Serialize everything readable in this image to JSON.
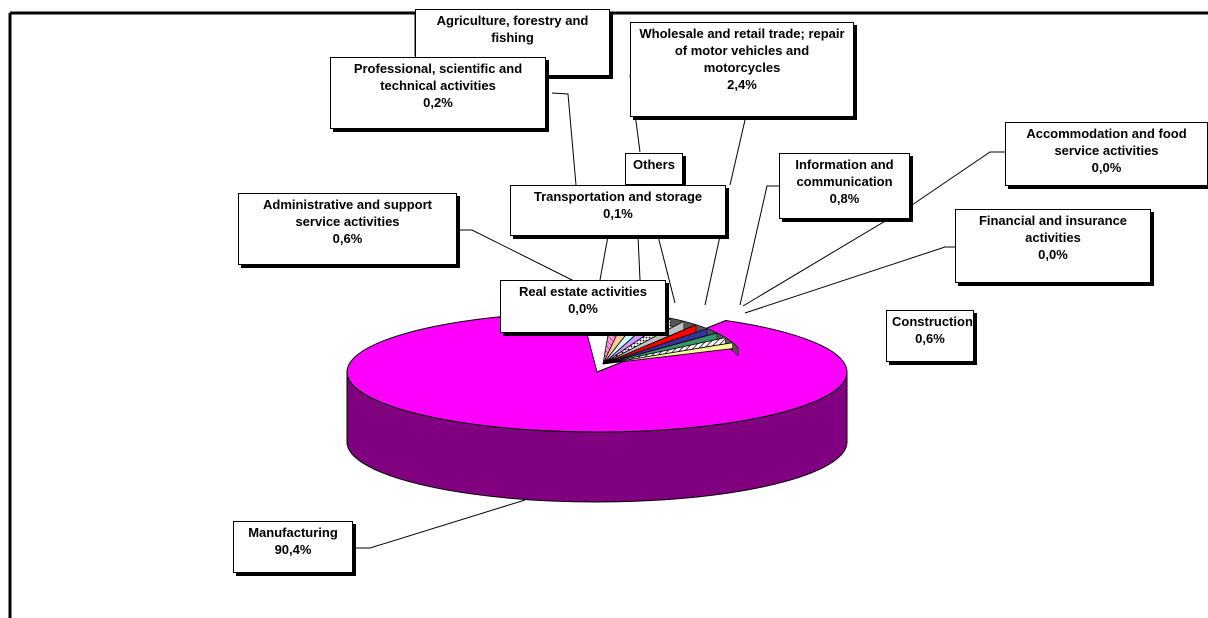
{
  "chart_data": {
    "type": "pie",
    "style": "3d-exploded-segment",
    "legend": "none",
    "slices": [
      {
        "name": "Manufacturing",
        "value": 90.4,
        "label": "90,4%",
        "color": "#ff00ff",
        "side_color": "#800080"
      },
      {
        "name": "Wholesale and retail trade; repair of motor vehicles and motorcycles",
        "value": 2.4,
        "label": "2,4%",
        "color": "#ff99cc"
      },
      {
        "name": "Information and communication",
        "value": 0.8,
        "label": "0,8%",
        "color": "#ffcc99"
      },
      {
        "name": "Construction",
        "value": 0.6,
        "label": "0,6%",
        "color": "#ccffff"
      },
      {
        "name": "Administrative and support service activities",
        "value": 0.6,
        "label": "0,6%",
        "color": "#cc99ff"
      },
      {
        "name": "Professional, scientific and technical activities",
        "value": 0.2,
        "label": "0,2%",
        "color": "#99ccff"
      },
      {
        "name": "Transportation and storage",
        "value": 0.1,
        "label": "0,1%",
        "color": "#c0c0c0"
      },
      {
        "name": "Real estate activities",
        "value": 0.0,
        "label": "0,0%",
        "color": "#ff0000"
      },
      {
        "name": "Accommodation and food service activities",
        "value": 0.0,
        "label": "0,0%",
        "color": "#333399"
      },
      {
        "name": "Financial and insurance activities",
        "value": 0.0,
        "label": "0,0%",
        "color": "#339966"
      },
      {
        "name": "Agriculture, forestry and fishing",
        "value": null,
        "label": "",
        "color": "#00ffff"
      },
      {
        "name": "Others",
        "value": null,
        "label": "",
        "color": "#ffff99"
      }
    ]
  }
}
